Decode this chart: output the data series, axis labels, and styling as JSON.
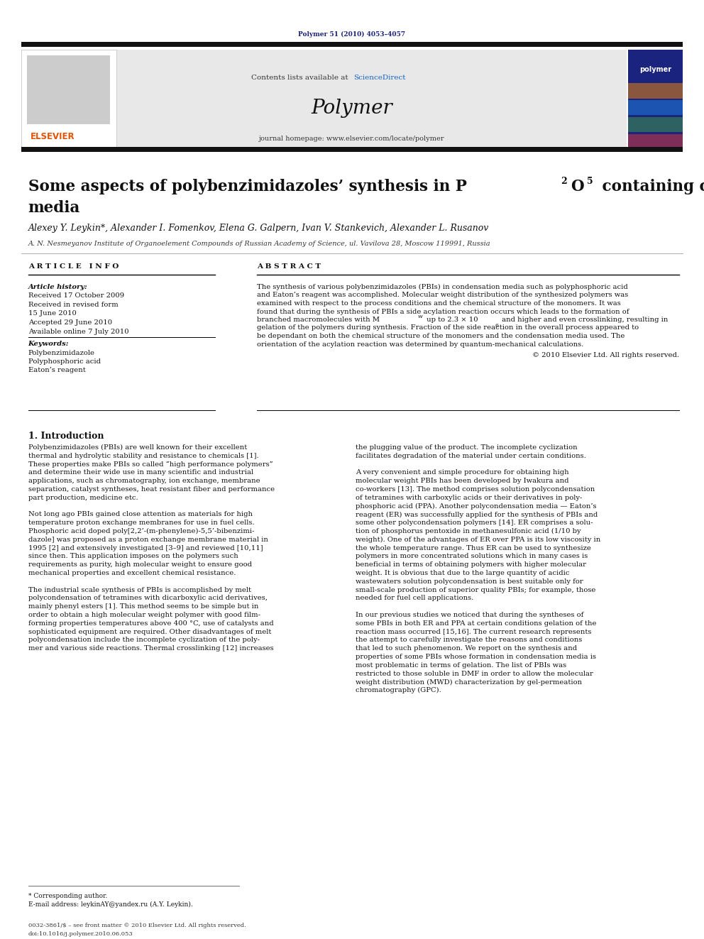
{
  "page_width": 9.92,
  "page_height": 13.23,
  "bg_color": "#ffffff",
  "journal_ref": "Polymer 51 (2010) 4053–4057",
  "journal_ref_color": "#1a237e",
  "sciencedirect_color": "#1565c0",
  "journal_homepage": "journal homepage: www.elsevier.com/locate/polymer",
  "header_bg": "#e8e8e8",
  "elsevier_color": "#e65100",
  "authors": "Alexey Y. Leykin*, Alexander I. Fomenkov, Elena G. Galpern, Ivan V. Stankevich, Alexander L. Rusanov",
  "affiliation": "A. N. Nesmeyanov Institute of Organoelement Compounds of Russian Academy of Science, ul. Vavilova 28, Moscow 119991, Russia",
  "article_info_header": "A R T I C L E   I N F O",
  "abstract_header": "A B S T R A C T",
  "article_history_label": "Article history:",
  "received_1": "Received 17 October 2009",
  "received_rev": "Received in revised form",
  "received_rev_date": "15 June 2010",
  "accepted": "Accepted 29 June 2010",
  "available": "Available online 7 July 2010",
  "keywords_label": "Keywords:",
  "keyword1": "Polybenzimidazole",
  "keyword2": "Polyphosphoric acid",
  "keyword3": "Eaton’s reagent",
  "abstract_line1": "The synthesis of various polybenzimidazoles (PBIs) in condensation media such as polyphosphoric acid",
  "abstract_line2": "and Eaton’s reagent was accomplished. Molecular weight distribution of the synthesized polymers was",
  "abstract_line3": "examined with respect to the process conditions and the chemical structure of the monomers. It was",
  "abstract_line4": "found that during the synthesis of PBIs a side acylation reaction occurs which leads to the formation of",
  "abstract_line5a": "branched macromolecules with M",
  "abstract_line5b": " up to 2.3 × 10",
  "abstract_line5c": " and higher and even crosslinking, resulting in",
  "abstract_line6": "gelation of the polymers during synthesis. Fraction of the side reaction in the overall process appeared to",
  "abstract_line7": "be dependant on both the chemical structure of the monomers and the condensation media used. The",
  "abstract_line8": "orientation of the acylation reaction was determined by quantum-mechanical calculations.",
  "copyright": "© 2010 Elsevier Ltd. All rights reserved.",
  "intro_header": "1. Introduction",
  "col1_lines": [
    "Polybenzimidazoles (PBIs) are well known for their excellent",
    "thermal and hydrolytic stability and resistance to chemicals [1].",
    "These properties make PBIs so called “high performance polymers”",
    "and determine their wide use in many scientific and industrial",
    "applications, such as chromatography, ion exchange, membrane",
    "separation, catalyst syntheses, heat resistant fiber and performance",
    "part production, medicine etc.",
    "",
    "Not long ago PBIs gained close attention as materials for high",
    "temperature proton exchange membranes for use in fuel cells.",
    "Phosphoric acid doped poly[2,2’-(m-phenylene)-5,5’-bibenzimi-",
    "dazole] was proposed as a proton exchange membrane material in",
    "1995 [2] and extensively investigated [3–9] and reviewed [10,11]",
    "since then. This application imposes on the polymers such",
    "requirements as purity, high molecular weight to ensure good",
    "mechanical properties and excellent chemical resistance.",
    "",
    "The industrial scale synthesis of PBIs is accomplished by melt",
    "polycondensation of tetramines with dicarboxylic acid derivatives,",
    "mainly phenyl esters [1]. This method seems to be simple but in",
    "order to obtain a high molecular weight polymer with good film-",
    "forming properties temperatures above 400 °C, use of catalysts and",
    "sophisticated equipment are required. Other disadvantages of melt",
    "polycondensation include the incomplete cyclization of the poly-",
    "mer and various side reactions. Thermal crosslinking [12] increases"
  ],
  "col2_lines": [
    "the plugging value of the product. The incomplete cyclization",
    "facilitates degradation of the material under certain conditions.",
    "",
    "A very convenient and simple procedure for obtaining high",
    "molecular weight PBIs has been developed by Iwakura and",
    "co-workers [13]. The method comprises solution polycondensation",
    "of tetramines with carboxylic acids or their derivatives in poly-",
    "phosphoric acid (PPA). Another polycondensation media — Eaton’s",
    "reagent (ER) was successfully applied for the synthesis of PBIs and",
    "some other polycondensation polymers [14]. ER comprises a solu-",
    "tion of phosphorus pentoxide in methanesulfonic acid (1/10 by",
    "weight). One of the advantages of ER over PPA is its low viscosity in",
    "the whole temperature range. Thus ER can be used to synthesize",
    "polymers in more concentrated solutions which in many cases is",
    "beneficial in terms of obtaining polymers with higher molecular",
    "weight. It is obvious that due to the large quantity of acidic",
    "wastewaters solution polycondensation is best suitable only for",
    "small-scale production of superior quality PBIs; for example, those",
    "needed for fuel cell applications.",
    "",
    "In our previous studies we noticed that during the syntheses of",
    "some PBIs in both ER and PPA at certain conditions gelation of the",
    "reaction mass occurred [15,16]. The current research represents",
    "the attempt to carefully investigate the reasons and conditions",
    "that led to such phenomenon. We report on the synthesis and",
    "properties of some PBIs whose formation in condensation media is",
    "most problematic in terms of gelation. The list of PBIs was",
    "restricted to those soluble in DMF in order to allow the molecular",
    "weight distribution (MWD) characterization by gel-permeation",
    "chromatography (GPC)."
  ],
  "footnote_star": "* Corresponding author.",
  "footnote_email": "E-mail address: leykinAY@yandex.ru (A.Y. Leykin).",
  "footer_line1": "0032-3861/$ – see front matter © 2010 Elsevier Ltd. All rights reserved.",
  "footer_line2": "doi:10.1016/j.polymer.2010.06.053"
}
